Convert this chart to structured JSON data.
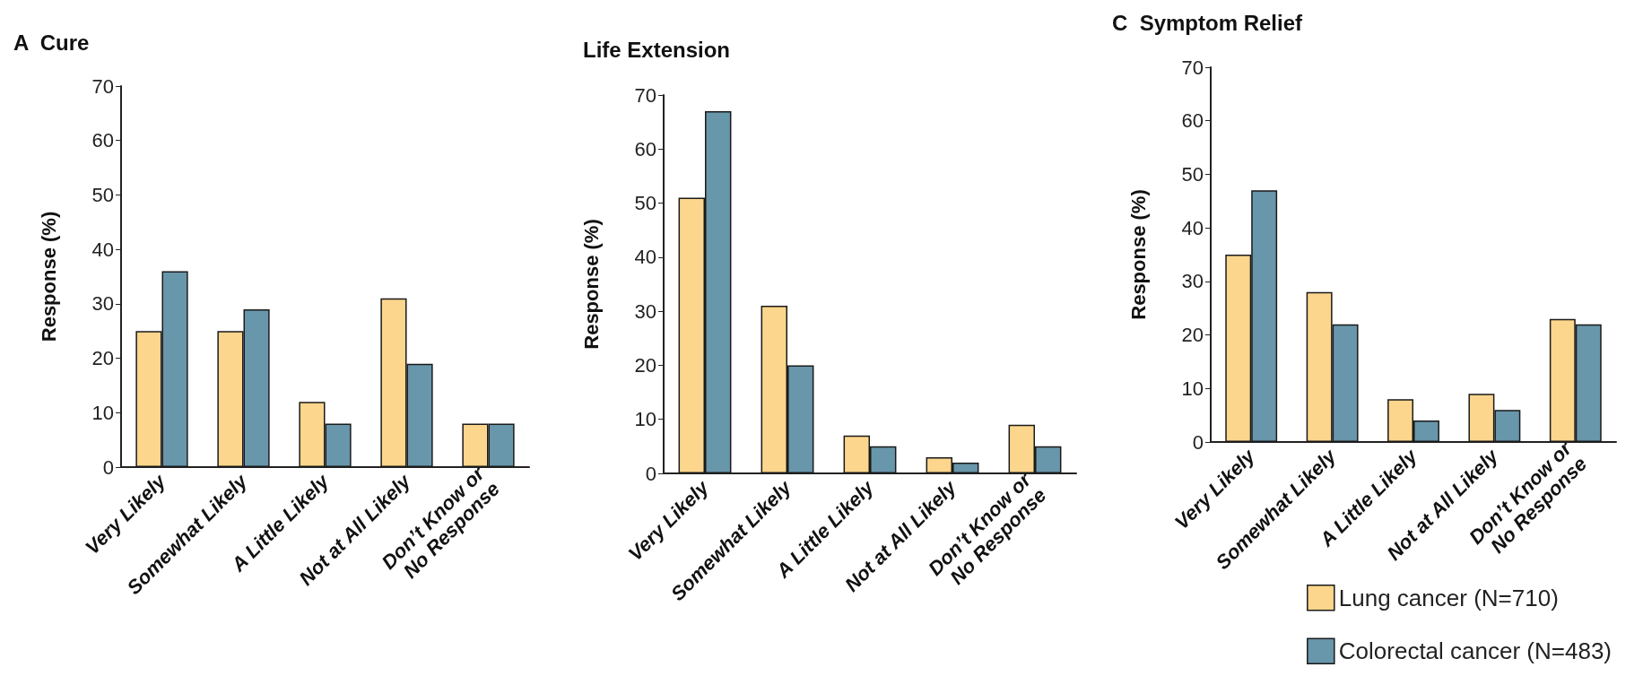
{
  "chart_data": [
    {
      "type": "bar",
      "title": "A  Cure",
      "ylabel": "Response (%)",
      "categories": [
        "Very Likely",
        "Somewhat Likely",
        "A Little Likely",
        "Not at All Likely",
        "Don’t Know or\nNo Response"
      ],
      "series": [
        {
          "color": "#fcd68c",
          "values": [
            25,
            25,
            12,
            31,
            8
          ]
        },
        {
          "color": "#6896aa",
          "values": [
            36,
            29,
            8,
            19,
            8
          ]
        }
      ],
      "ylim": [
        0,
        70
      ],
      "yticks": [
        0,
        10,
        20,
        30,
        40,
        50,
        60,
        70
      ],
      "grid": false,
      "legend": false
    },
    {
      "type": "bar",
      "title": "Life Extension",
      "ylabel": "Response (%)",
      "categories": [
        "Very Likely",
        "Somewhat Likely",
        "A Little Likely",
        "Not at All Likely",
        "Don’t Know or\nNo Response"
      ],
      "series": [
        {
          "color": "#fcd68c",
          "values": [
            51,
            31,
            7,
            3,
            9
          ]
        },
        {
          "color": "#6896aa",
          "values": [
            67,
            20,
            5,
            2,
            5
          ]
        }
      ],
      "ylim": [
        0,
        70
      ],
      "yticks": [
        0,
        10,
        20,
        30,
        40,
        50,
        60,
        70
      ],
      "grid": false,
      "legend": false
    },
    {
      "type": "bar",
      "title": "C  Symptom Relief",
      "ylabel": "Response (%)",
      "categories": [
        "Very Likely",
        "Somewhat Likely",
        "A Little Likely",
        "Not at All Likely",
        "Don’t Know or\nNo Response"
      ],
      "series": [
        {
          "name": "Lung cancer (N=710)",
          "color": "#fcd68c",
          "values": [
            35,
            28,
            8,
            9,
            23
          ]
        },
        {
          "name": "Colorectal cancer (N=483)",
          "color": "#6896aa",
          "values": [
            47,
            22,
            4,
            6,
            22
          ]
        }
      ],
      "ylim": [
        0,
        70
      ],
      "yticks": [
        0,
        10,
        20,
        30,
        40,
        50,
        60,
        70
      ],
      "grid": false,
      "legend": "bottom right"
    }
  ]
}
